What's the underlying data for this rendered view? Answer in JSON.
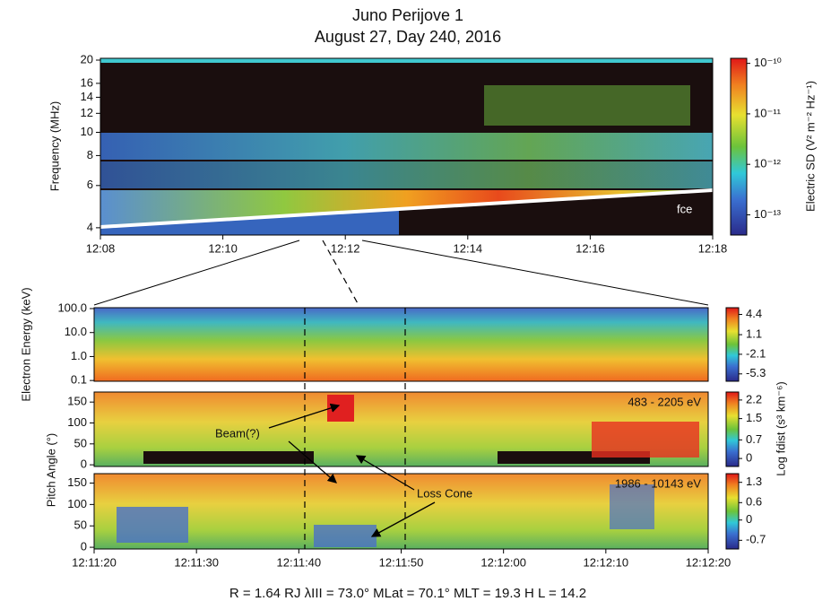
{
  "title": "Juno Perijove 1",
  "subtitle": "August 27, Day 240, 2016",
  "chart_data": [
    {
      "type": "heatmap",
      "ylabel": "Frequency (MHz)",
      "log_scale": true,
      "ylim": [
        3.73,
        20.35
      ],
      "yticks": [
        4,
        6,
        8,
        10,
        12,
        14,
        16,
        20
      ],
      "xticks": [
        "12:08",
        "12:10",
        "12:12",
        "12:14",
        "12:16",
        "12:18"
      ],
      "annotation": "fce",
      "colorbar": {
        "label": "Electric SD (V² m⁻² Hz⁻¹)",
        "lim": [
          -13.4,
          -9.9
        ],
        "ticks": [
          {
            "value": -10,
            "label": "10⁻¹⁰"
          },
          {
            "value": -11,
            "label": "10⁻¹¹"
          },
          {
            "value": -12,
            "label": "10⁻¹²"
          },
          {
            "value": -13,
            "label": "10⁻¹³"
          }
        ]
      }
    },
    {
      "type": "heatmap",
      "ylabel": "Electron Energy (keV)",
      "log_scale": true,
      "ylim": [
        0.093,
        109
      ],
      "yticks": [
        {
          "value": 100,
          "label": "100.0"
        },
        {
          "value": 10,
          "label": "10.0"
        },
        {
          "value": 1,
          "label": "1.0"
        },
        0.1
      ],
      "colorbar": {
        "lim": [
          -6.5,
          5.5
        ],
        "ticks": [
          4.4,
          1.1,
          -2.1,
          -5.3
        ]
      }
    },
    {
      "type": "heatmap",
      "ylabel": "Pitch Angle (°)",
      "log_scale": false,
      "ylim": [
        -4,
        174
      ],
      "yticks": [
        0,
        50,
        100,
        150
      ],
      "annotation": "483 - 2205 eV",
      "colorbar": {
        "label": "Log fdist (s³ km⁻⁶)",
        "lim": [
          -0.3,
          2.5
        ],
        "ticks": [
          2.2,
          1.5,
          0.7,
          0.0
        ]
      }
    },
    {
      "type": "heatmap",
      "log_scale": false,
      "ylim": [
        -4,
        172
      ],
      "yticks": [
        0,
        50,
        100,
        150
      ],
      "annotation": "1986 - 10143 eV",
      "xticks": [
        "12:11:20",
        "12:11:30",
        "12:11:40",
        "12:11:50",
        "12:12:00",
        "12:12:10",
        "12:12:20"
      ],
      "colorbar": {
        "lim": [
          -1,
          1.6
        ],
        "ticks": [
          1.3,
          0.6,
          0.0,
          -0.7
        ]
      }
    }
  ],
  "annotations": [
    "Beam(?)",
    "Loss Cone"
  ],
  "footer": "R = 1.64 RJ    λIII = 73.0°    MLat = 70.1°    MLT = 19.3 H    L = 14.2"
}
